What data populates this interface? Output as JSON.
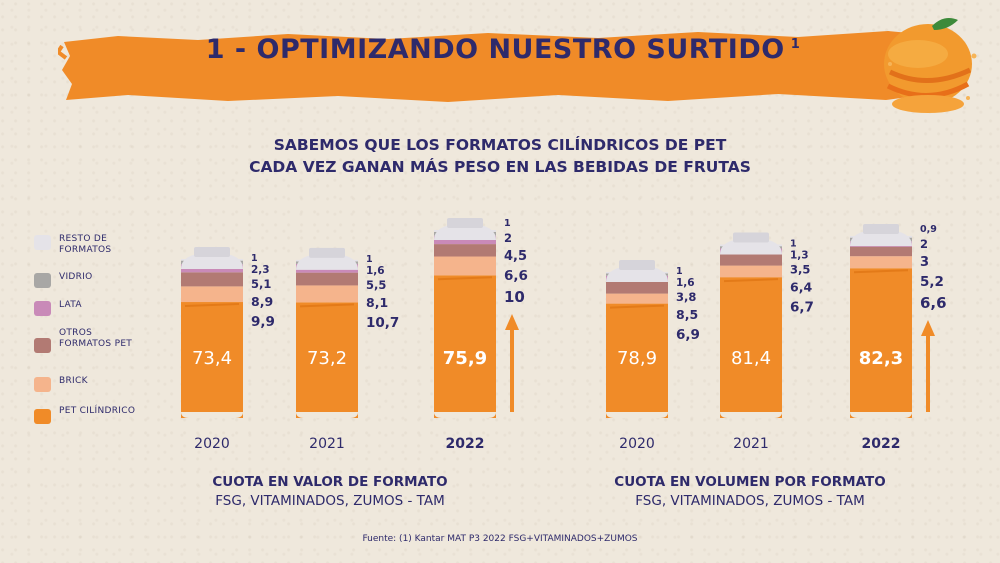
{
  "title": "1 - OPTIMIZANDO NUESTRO SURTIDO",
  "title_sup": "1",
  "subtitle_line1": "SABEMOS QUE LOS FORMATOS CILÍNDRICOS DE PET",
  "subtitle_line2": "CADA VEZ GANAN MÁS PESO EN LAS BEBIDAS DE FRUTAS",
  "legend": [
    {
      "label": "RESTO DE FORMATOS",
      "color": "#e5e3e8"
    },
    {
      "label": "VIDRIO",
      "color": "#a8a7a5"
    },
    {
      "label": "LATA",
      "color": "#c98ab8"
    },
    {
      "label": "OTROS FORMATOS PET",
      "color": "#b27a73"
    },
    {
      "label": "BRICK",
      "color": "#f5b48c"
    },
    {
      "label": "PET CILÍNDRICO",
      "color": "#f08b28"
    }
  ],
  "chart_data": [
    {
      "type": "bar",
      "stacked": true,
      "title": "CUOTA EN VALOR DE FORMATO",
      "subtitle": "FSG, VITAMINADOS, ZUMOS - TAM",
      "categories": [
        "2020",
        "2021",
        "2022"
      ],
      "series": [
        {
          "name": "PET CILÍNDRICO",
          "values": [
            "73,4",
            "73,2",
            "75,9"
          ]
        },
        {
          "name": "BRICK",
          "values": [
            "9,9",
            "10,7",
            "10"
          ]
        },
        {
          "name": "OTROS FORMATOS PET",
          "values": [
            "8,9",
            "8,1",
            "6,6"
          ]
        },
        {
          "name": "LATA",
          "values": [
            "5,1",
            "5,5",
            "4,5"
          ]
        },
        {
          "name": "VIDRIO",
          "values": [
            "2,3",
            "1,6",
            "2"
          ]
        },
        {
          "name": "RESTO DE FORMATOS",
          "values": [
            "1",
            "1",
            "1"
          ]
        }
      ]
    },
    {
      "type": "bar",
      "stacked": true,
      "title": "CUOTA EN VOLUMEN POR FORMATO",
      "subtitle": "FSG, VITAMINADOS, ZUMOS - TAM",
      "categories": [
        "2020",
        "2021",
        "2022"
      ],
      "series": [
        {
          "name": "PET CILÍNDRICO",
          "values": [
            "78,9",
            "81,4",
            "82,3"
          ]
        },
        {
          "name": "BRICK",
          "values": [
            "6,9",
            "6,7",
            "6,6"
          ]
        },
        {
          "name": "OTROS FORMATOS PET",
          "values": [
            "8,5",
            "6,4",
            "5,2"
          ]
        },
        {
          "name": "LATA",
          "values": [
            "3,8",
            "3,5",
            "3"
          ]
        },
        {
          "name": "VIDRIO",
          "values": [
            "1,6",
            "1,3",
            "2"
          ]
        },
        {
          "name": "RESTO DE FORMATOS",
          "values": [
            "1",
            "1",
            "0,9"
          ]
        }
      ]
    }
  ],
  "source": "Fuente: (1) Kantar MAT P3 2022 FSG+VITAMINADOS+ZUMOS"
}
